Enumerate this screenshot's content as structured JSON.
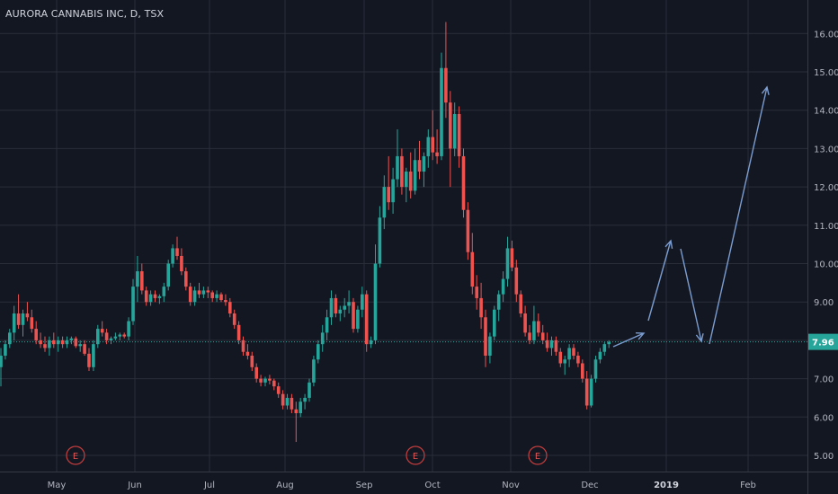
{
  "header": {
    "title": "AURORA CANNABIS INC, D, TSX"
  },
  "chart_data": {
    "type": "candlestick",
    "symbol": "AURORA CANNABIS INC",
    "interval": "D",
    "exchange": "TSX",
    "ylim": [
      4.8,
      16.4
    ],
    "y_ticks": [
      "16.00",
      "15.00",
      "14.00",
      "13.00",
      "12.00",
      "11.00",
      "10.00",
      "9.00",
      "8.00",
      "7.00",
      "6.00",
      "5.00"
    ],
    "x_ticks": [
      "May",
      "Jun",
      "Jul",
      "Aug",
      "Sep",
      "Oct",
      "Nov",
      "Dec",
      "2019",
      "Feb"
    ],
    "last_price": "7.96",
    "earnings_markers": [
      "E",
      "E",
      "E"
    ],
    "candles": [
      [
        7.3,
        7.8,
        6.8,
        7.6
      ],
      [
        7.6,
        8.0,
        7.5,
        7.9
      ],
      [
        7.9,
        8.3,
        7.8,
        8.2
      ],
      [
        8.2,
        8.9,
        8.0,
        8.7
      ],
      [
        8.7,
        9.2,
        8.3,
        8.4
      ],
      [
        8.4,
        8.8,
        8.1,
        8.7
      ],
      [
        8.7,
        9.0,
        8.5,
        8.6
      ],
      [
        8.6,
        8.8,
        8.2,
        8.3
      ],
      [
        8.3,
        8.5,
        7.9,
        8.0
      ],
      [
        8.0,
        8.2,
        7.8,
        7.9
      ],
      [
        7.9,
        8.1,
        7.7,
        7.8
      ],
      [
        7.8,
        8.1,
        7.6,
        8.0
      ],
      [
        8.0,
        8.2,
        7.8,
        7.9
      ],
      [
        7.9,
        8.1,
        7.7,
        8.0
      ],
      [
        8.0,
        8.1,
        7.8,
        7.9
      ],
      [
        7.9,
        8.1,
        7.8,
        8.0
      ],
      [
        8.0,
        8.1,
        7.9,
        8.05
      ],
      [
        8.05,
        8.1,
        7.8,
        7.85
      ],
      [
        7.85,
        8.0,
        7.7,
        7.9
      ],
      [
        7.9,
        8.0,
        7.6,
        7.65
      ],
      [
        7.65,
        7.8,
        7.2,
        7.3
      ],
      [
        7.3,
        8.0,
        7.2,
        7.9
      ],
      [
        7.9,
        8.4,
        7.8,
        8.3
      ],
      [
        8.3,
        8.5,
        8.1,
        8.2
      ],
      [
        8.2,
        8.3,
        7.9,
        8.0
      ],
      [
        8.0,
        8.1,
        7.9,
        8.05
      ],
      [
        8.05,
        8.2,
        8.0,
        8.1
      ],
      [
        8.1,
        8.2,
        8.0,
        8.15
      ],
      [
        8.15,
        8.2,
        8.05,
        8.1
      ],
      [
        8.1,
        8.6,
        8.0,
        8.5
      ],
      [
        8.5,
        9.6,
        8.4,
        9.4
      ],
      [
        9.4,
        10.2,
        9.0,
        9.8
      ],
      [
        9.8,
        10.0,
        9.2,
        9.3
      ],
      [
        9.3,
        9.4,
        8.9,
        9.0
      ],
      [
        9.0,
        9.3,
        8.9,
        9.2
      ],
      [
        9.2,
        9.3,
        9.0,
        9.1
      ],
      [
        9.1,
        9.2,
        8.95,
        9.15
      ],
      [
        9.15,
        9.5,
        9.0,
        9.4
      ],
      [
        9.4,
        10.1,
        9.3,
        10.0
      ],
      [
        10.0,
        10.5,
        9.9,
        10.4
      ],
      [
        10.4,
        10.7,
        10.1,
        10.2
      ],
      [
        10.2,
        10.4,
        9.7,
        9.8
      ],
      [
        9.8,
        9.9,
        9.3,
        9.4
      ],
      [
        9.4,
        9.5,
        8.9,
        9.0
      ],
      [
        9.0,
        9.4,
        8.9,
        9.3
      ],
      [
        9.3,
        9.5,
        9.1,
        9.2
      ],
      [
        9.2,
        9.4,
        9.1,
        9.3
      ],
      [
        9.3,
        9.4,
        9.1,
        9.25
      ],
      [
        9.25,
        9.3,
        9.0,
        9.1
      ],
      [
        9.1,
        9.3,
        9.0,
        9.2
      ],
      [
        9.2,
        9.25,
        9.0,
        9.05
      ],
      [
        9.05,
        9.2,
        8.9,
        9.0
      ],
      [
        9.0,
        9.1,
        8.6,
        8.7
      ],
      [
        8.7,
        8.8,
        8.3,
        8.4
      ],
      [
        8.4,
        8.5,
        7.9,
        8.0
      ],
      [
        8.0,
        8.1,
        7.6,
        7.7
      ],
      [
        7.7,
        7.9,
        7.5,
        7.6
      ],
      [
        7.6,
        7.7,
        7.2,
        7.3
      ],
      [
        7.3,
        7.4,
        6.9,
        7.0
      ],
      [
        7.0,
        7.1,
        6.8,
        6.9
      ],
      [
        6.9,
        7.05,
        6.8,
        7.0
      ],
      [
        7.0,
        7.1,
        6.85,
        6.95
      ],
      [
        6.95,
        7.0,
        6.7,
        6.8
      ],
      [
        6.8,
        6.9,
        6.5,
        6.6
      ],
      [
        6.6,
        6.7,
        6.2,
        6.3
      ],
      [
        6.3,
        6.6,
        6.2,
        6.5
      ],
      [
        6.5,
        6.6,
        6.1,
        6.2
      ],
      [
        6.2,
        6.4,
        5.35,
        6.1
      ],
      [
        6.1,
        6.5,
        6.0,
        6.4
      ],
      [
        6.4,
        6.6,
        6.2,
        6.5
      ],
      [
        6.5,
        7.0,
        6.4,
        6.9
      ],
      [
        6.9,
        7.6,
        6.8,
        7.5
      ],
      [
        7.5,
        8.0,
        7.4,
        7.9
      ],
      [
        7.9,
        8.4,
        7.7,
        8.2
      ],
      [
        8.2,
        8.8,
        8.0,
        8.6
      ],
      [
        8.6,
        9.3,
        8.4,
        9.1
      ],
      [
        9.1,
        9.2,
        8.6,
        8.7
      ],
      [
        8.7,
        8.9,
        8.5,
        8.8
      ],
      [
        8.8,
        9.1,
        8.6,
        8.9
      ],
      [
        8.9,
        9.3,
        8.7,
        9.0
      ],
      [
        9.0,
        9.1,
        8.2,
        8.3
      ],
      [
        8.3,
        8.9,
        8.2,
        8.8
      ],
      [
        8.8,
        9.4,
        8.6,
        9.2
      ],
      [
        9.2,
        9.3,
        7.7,
        7.9
      ],
      [
        7.9,
        8.1,
        7.8,
        8.0
      ],
      [
        8.0,
        10.5,
        7.9,
        10.0
      ],
      [
        10.0,
        11.5,
        9.9,
        11.2
      ],
      [
        11.2,
        12.3,
        10.9,
        12.0
      ],
      [
        12.0,
        12.8,
        11.4,
        11.6
      ],
      [
        11.6,
        12.5,
        11.3,
        12.2
      ],
      [
        12.2,
        13.5,
        12.0,
        12.8
      ],
      [
        12.8,
        13.0,
        11.8,
        12.0
      ],
      [
        12.0,
        12.5,
        11.6,
        12.4
      ],
      [
        12.4,
        12.9,
        11.7,
        11.9
      ],
      [
        11.9,
        13.0,
        11.8,
        12.7
      ],
      [
        12.7,
        13.2,
        12.2,
        12.4
      ],
      [
        12.4,
        12.9,
        12.0,
        12.8
      ],
      [
        12.8,
        13.5,
        12.5,
        13.3
      ],
      [
        13.3,
        14.0,
        12.7,
        12.9
      ],
      [
        12.9,
        13.5,
        12.6,
        12.8
      ],
      [
        12.8,
        15.5,
        12.7,
        15.1
      ],
      [
        15.1,
        16.3,
        13.8,
        14.2
      ],
      [
        14.2,
        14.5,
        12.0,
        13.0
      ],
      [
        13.0,
        14.2,
        12.8,
        13.9
      ],
      [
        13.9,
        14.1,
        12.5,
        12.8
      ],
      [
        12.8,
        13.0,
        11.2,
        11.4
      ],
      [
        11.4,
        11.6,
        10.1,
        10.3
      ],
      [
        10.3,
        10.8,
        9.2,
        9.4
      ],
      [
        9.4,
        9.7,
        8.8,
        9.1
      ],
      [
        9.1,
        9.5,
        8.3,
        8.6
      ],
      [
        8.6,
        8.8,
        7.3,
        7.6
      ],
      [
        7.6,
        8.2,
        7.4,
        8.1
      ],
      [
        8.1,
        8.9,
        8.0,
        8.8
      ],
      [
        8.8,
        9.3,
        8.5,
        9.2
      ],
      [
        9.2,
        9.8,
        9.0,
        9.6
      ],
      [
        9.6,
        10.7,
        9.4,
        10.4
      ],
      [
        10.4,
        10.6,
        9.8,
        9.9
      ],
      [
        9.9,
        10.1,
        9.0,
        9.2
      ],
      [
        9.2,
        9.3,
        8.6,
        8.7
      ],
      [
        8.7,
        8.9,
        8.1,
        8.2
      ],
      [
        8.2,
        8.4,
        7.9,
        8.0
      ],
      [
        8.0,
        8.9,
        7.9,
        8.5
      ],
      [
        8.5,
        8.7,
        8.1,
        8.2
      ],
      [
        8.2,
        8.4,
        7.9,
        8.0
      ],
      [
        8.0,
        8.2,
        7.7,
        7.8
      ],
      [
        7.8,
        8.1,
        7.6,
        8.0
      ],
      [
        8.0,
        8.1,
        7.6,
        7.7
      ],
      [
        7.7,
        7.8,
        7.3,
        7.4
      ],
      [
        7.4,
        7.6,
        7.1,
        7.5
      ],
      [
        7.5,
        7.9,
        7.3,
        7.8
      ],
      [
        7.8,
        7.9,
        7.5,
        7.6
      ],
      [
        7.6,
        7.7,
        7.3,
        7.4
      ],
      [
        7.4,
        7.5,
        6.9,
        7.0
      ],
      [
        7.0,
        7.2,
        6.2,
        6.3
      ],
      [
        6.3,
        7.1,
        6.25,
        7.0
      ],
      [
        7.0,
        7.6,
        6.9,
        7.5
      ],
      [
        7.5,
        7.8,
        7.4,
        7.7
      ],
      [
        7.7,
        7.95,
        7.6,
        7.9
      ],
      [
        7.9,
        8.0,
        7.8,
        7.96
      ]
    ],
    "projection_path": [
      [
        "2018-12-11",
        7.96
      ],
      [
        "2018-12-20",
        8.25
      ],
      [
        "2018-12-28",
        10.6
      ],
      [
        "2019-01-11",
        7.9
      ],
      [
        "2019-02-01",
        14.6
      ]
    ]
  }
}
